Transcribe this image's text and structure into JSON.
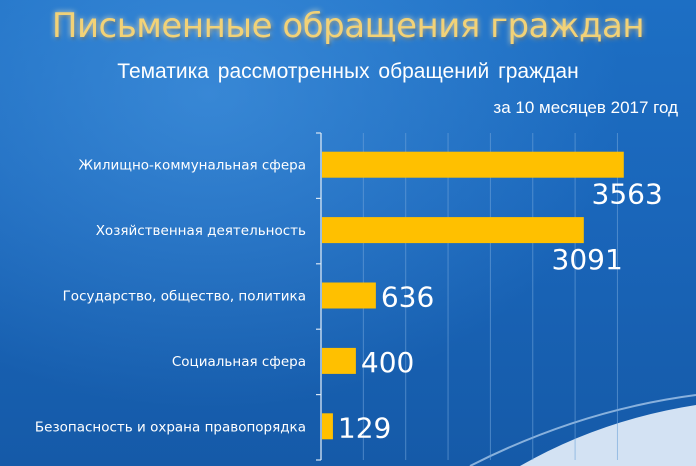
{
  "header": {
    "title": "Письменные обращения граждан",
    "subtitle": "Тематика  рассмотренных  обращений  граждан",
    "period": "за 10 месяцев 2017 год"
  },
  "colors": {
    "bar": "#ffc000",
    "background": "#1a66ba",
    "title": "#f2d277",
    "text": "#ffffff"
  },
  "chart_data": {
    "type": "bar",
    "orientation": "horizontal",
    "title": "Тематика  рассмотренных  обращений  граждан",
    "subtitle": "за 10 месяцев 2017 год",
    "categories": [
      "Жилищно-коммунальная сфера",
      "Хозяйственная деятельность",
      "Государство, общество, политика",
      "Социальная сфера",
      "Безопасность и охрана правопорядка"
    ],
    "values": [
      3563,
      3091,
      636,
      400,
      129
    ],
    "value_labels": [
      "3563",
      "3091",
      "636",
      "400",
      "129"
    ],
    "xlim": [
      0,
      4000
    ],
    "grid": true,
    "legend": "none"
  }
}
